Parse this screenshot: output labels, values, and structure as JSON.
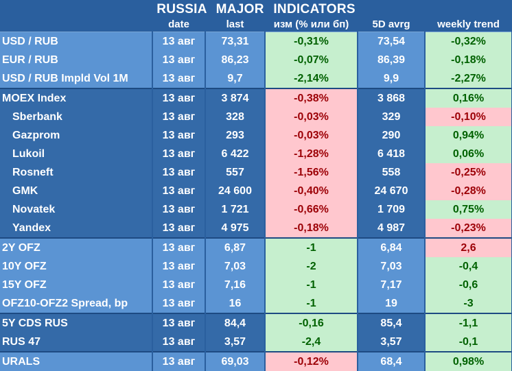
{
  "title": "RUSSIA   MAJOR   INDICATORS",
  "headers": [
    "",
    "date",
    "last",
    "изм (% или бп)",
    "5D avrg",
    "weekly trend"
  ],
  "groups": [
    {
      "band": "lb",
      "rows": [
        {
          "name": "USD / RUB",
          "date": "13 авг",
          "last": "73,31",
          "chg": "-0,31%",
          "chg_color": "g",
          "avg": "73,54",
          "trend": "-0,32%",
          "trend_color": "g"
        },
        {
          "name": "EUR / RUB",
          "date": "13 авг",
          "last": "86,23",
          "chg": "-0,07%",
          "chg_color": "g",
          "avg": "86,39",
          "trend": "-0,18%",
          "trend_color": "g"
        },
        {
          "name": "USD / RUB Impld Vol 1M",
          "date": "13 авг",
          "last": "9,7",
          "chg": "-2,14%",
          "chg_color": "g",
          "avg": "9,9",
          "trend": "-2,27%",
          "trend_color": "g"
        }
      ]
    },
    {
      "band": "db",
      "rows": [
        {
          "name": "MOEX Index",
          "indent": false,
          "date": "13 авг",
          "last": "3 874",
          "chg": "-0,38%",
          "chg_color": "r",
          "avg": "3 868",
          "trend": "0,16%",
          "trend_color": "g"
        },
        {
          "name": "Sberbank",
          "indent": true,
          "date": "13 авг",
          "last": "328",
          "chg": "-0,03%",
          "chg_color": "r",
          "avg": "329",
          "trend": "-0,10%",
          "trend_color": "r"
        },
        {
          "name": "Gazprom",
          "indent": true,
          "date": "13 авг",
          "last": "293",
          "chg": "-0,03%",
          "chg_color": "r",
          "avg": "290",
          "trend": "0,94%",
          "trend_color": "g"
        },
        {
          "name": "Lukoil",
          "indent": true,
          "date": "13 авг",
          "last": "6 422",
          "chg": "-1,28%",
          "chg_color": "r",
          "avg": "6 418",
          "trend": "0,06%",
          "trend_color": "g"
        },
        {
          "name": "Rosneft",
          "indent": true,
          "date": "13 авг",
          "last": "557",
          "chg": "-1,56%",
          "chg_color": "r",
          "avg": "558",
          "trend": "-0,25%",
          "trend_color": "r"
        },
        {
          "name": "GMK",
          "indent": true,
          "date": "13 авг",
          "last": "24 600",
          "chg": "-0,40%",
          "chg_color": "r",
          "avg": "24 670",
          "trend": "-0,28%",
          "trend_color": "r"
        },
        {
          "name": "Novatek",
          "indent": true,
          "date": "13 авг",
          "last": "1 721",
          "chg": "-0,66%",
          "chg_color": "r",
          "avg": "1 709",
          "trend": "0,75%",
          "trend_color": "g"
        },
        {
          "name": "Yandex",
          "indent": true,
          "date": "13 авг",
          "last": "4 975",
          "chg": "-0,18%",
          "chg_color": "r",
          "avg": "4 987",
          "trend": "-0,23%",
          "trend_color": "r"
        }
      ]
    },
    {
      "band": "lb",
      "rows": [
        {
          "name": "2Y OFZ",
          "date": "13 авг",
          "last": "6,87",
          "chg": "-1",
          "chg_color": "g",
          "avg": "6,84",
          "trend": "2,6",
          "trend_color": "r"
        },
        {
          "name": "10Y OFZ",
          "date": "13 авг",
          "last": "7,03",
          "chg": "-2",
          "chg_color": "g",
          "avg": "7,03",
          "trend": "-0,4",
          "trend_color": "g"
        },
        {
          "name": "15Y OFZ",
          "date": "13 авг",
          "last": "7,16",
          "chg": "-1",
          "chg_color": "g",
          "avg": "7,17",
          "trend": "-0,6",
          "trend_color": "g"
        },
        {
          "name": "OFZ10-OFZ2 Spread, bp",
          "date": "13 авг",
          "last": "16",
          "chg": "-1",
          "chg_color": "g",
          "avg": "19",
          "trend": "-3",
          "trend_color": "g"
        }
      ]
    },
    {
      "band": "db",
      "rows": [
        {
          "name": "5Y CDS RUS",
          "date": "13 авг",
          "last": "84,4",
          "chg": "-0,16",
          "chg_color": "g",
          "avg": "85,4",
          "trend": "-1,1",
          "trend_color": "g"
        },
        {
          "name": "RUS 47",
          "date": "13 авг",
          "last": "3,57",
          "chg": "-2,4",
          "chg_color": "g",
          "avg": "3,57",
          "trend": "-0,1",
          "trend_color": "g"
        }
      ]
    },
    {
      "band": "lb",
      "rows": [
        {
          "name": "URALS",
          "date": "13 авг",
          "last": "69,03",
          "chg": "-0,12%",
          "chg_color": "r",
          "avg": "68,4",
          "trend": "0,98%",
          "trend_color": "g"
        }
      ]
    }
  ]
}
